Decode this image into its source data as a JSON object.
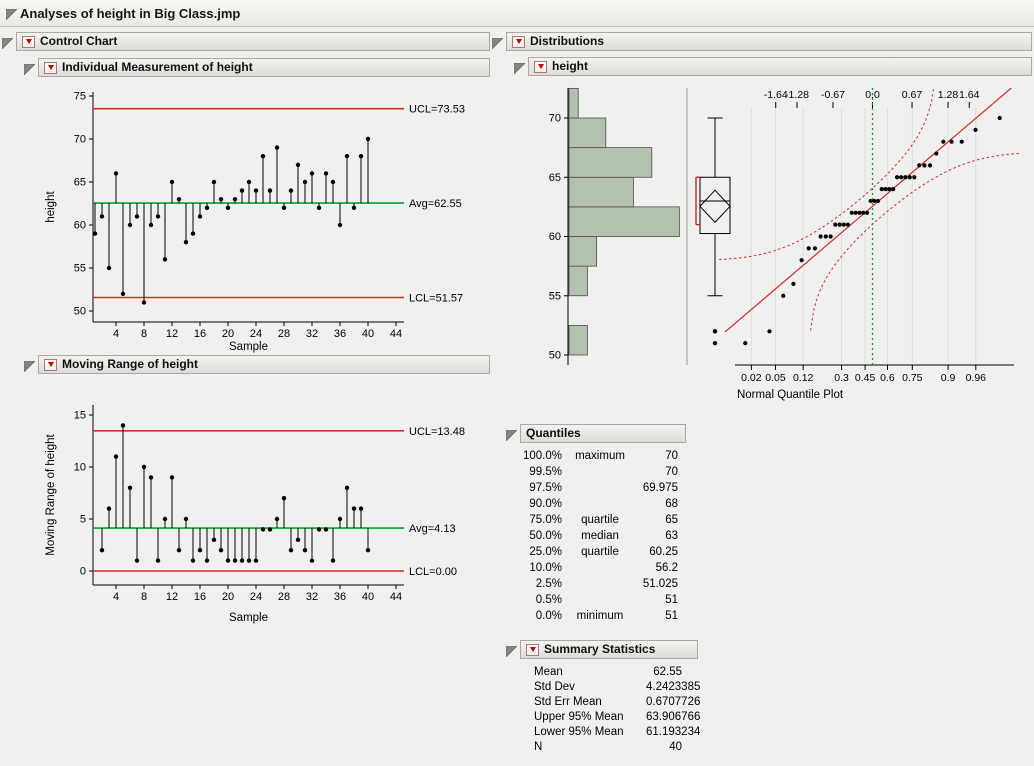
{
  "window_title": "Analyses of height in Big Class.jmp",
  "colors": {
    "limit_red": "#d42a2a",
    "center_green": "#00a42c",
    "hist_fill": "#b3c2af",
    "hist_stroke": "#4d4d4d",
    "bracket_red": "#cc2222",
    "grid_gray": "#dcdcda"
  },
  "sections": {
    "control_chart": {
      "title": "Control Chart"
    },
    "individual": {
      "title": "Individual Measurement of height"
    },
    "moving_range": {
      "title": "Moving Range of height"
    },
    "distributions": {
      "title": "Distributions"
    },
    "height_dist": {
      "title": "height"
    },
    "quantiles": {
      "title": "Quantiles"
    },
    "summary": {
      "title": "Summary Statistics"
    }
  },
  "chart_data": [
    {
      "id": "individual-measurement",
      "type": "line",
      "subtype": "individuals-control-chart",
      "title": "Individual Measurement of height",
      "xlabel": "Sample",
      "ylabel": "height",
      "x_start": 1,
      "values": [
        59,
        61,
        55,
        66,
        52,
        60,
        61,
        51,
        60,
        61,
        56,
        65,
        63,
        58,
        59,
        61,
        62,
        65,
        63,
        62,
        63,
        64,
        65,
        64,
        68,
        64,
        69,
        62,
        64,
        67,
        65,
        66,
        62,
        66,
        65,
        60,
        68,
        62,
        68,
        70
      ],
      "center": 62.55,
      "ucl": 73.53,
      "lcl": 51.57,
      "limit_labels": {
        "ucl": "UCL=73.53",
        "avg": "Avg=62.55",
        "lcl": "LCL=51.57"
      },
      "ylim": [
        50,
        75
      ],
      "yticks": [
        50,
        55,
        60,
        65,
        70,
        75
      ],
      "xticks": [
        4,
        8,
        12,
        16,
        20,
        24,
        28,
        32,
        36,
        40,
        44
      ]
    },
    {
      "id": "moving-range",
      "type": "line",
      "subtype": "moving-range-control-chart",
      "title": "Moving Range of height",
      "xlabel": "Sample",
      "ylabel": "Moving Range of height",
      "x_start": 2,
      "values": [
        2,
        6,
        11,
        14,
        8,
        1,
        10,
        9,
        1,
        5,
        9,
        2,
        5,
        1,
        2,
        1,
        3,
        2,
        1,
        1,
        1,
        1,
        1,
        4,
        4,
        5,
        7,
        2,
        3,
        2,
        1,
        4,
        4,
        1,
        5,
        8,
        6,
        6,
        2
      ],
      "center": 4.13,
      "ucl": 13.48,
      "lcl": 0,
      "limit_labels": {
        "ucl": "UCL=13.48",
        "avg": "Avg=4.13",
        "lcl": "LCL=0.00"
      },
      "ylim": [
        0,
        15
      ],
      "yticks": [
        0,
        5,
        10,
        15
      ],
      "xticks": [
        4,
        8,
        12,
        16,
        20,
        24,
        28,
        32,
        36,
        40,
        44
      ]
    },
    {
      "id": "height-distribution",
      "type": "histogram",
      "title": "height",
      "values": [
        59,
        61,
        55,
        66,
        52,
        60,
        61,
        51,
        60,
        61,
        56,
        65,
        63,
        58,
        59,
        61,
        62,
        65,
        63,
        62,
        63,
        64,
        65,
        64,
        68,
        64,
        69,
        62,
        64,
        67,
        65,
        66,
        62,
        66,
        65,
        60,
        68,
        62,
        68,
        70
      ],
      "yticks": [
        50,
        55,
        60,
        65,
        70
      ],
      "histogram": {
        "bin_start": 50,
        "bin_width": 2.5,
        "counts": [
          2,
          0,
          2,
          3,
          12,
          7,
          9,
          4,
          1
        ]
      },
      "boxplot": {
        "q1": 60.25,
        "median": 63,
        "q3": 65,
        "whisker_low": 55,
        "whisker_high": 70,
        "outliers": [
          51,
          52
        ],
        "mean": 62.55,
        "mean_ci_low": 61.193234,
        "mean_ci_high": 63.906766,
        "shortest_half": [
          61,
          65
        ]
      },
      "qq": {
        "caption": "Normal Quantile Plot",
        "top_ticks": [
          -1.64,
          -1.28,
          -0.67,
          0.0,
          0.67,
          1.28,
          1.64
        ],
        "top_tick_labels": [
          "-1.64",
          "-1.28",
          "-0.67",
          "0.0",
          "0.67",
          "1.28",
          "1.64"
        ],
        "prob_ticks": [
          "0.02",
          "0.05",
          "0.12",
          "0.3",
          "0.45",
          "0.6",
          "0.75",
          "0.9",
          "0.96"
        ],
        "mean": 62.55,
        "sd": 4.2423385,
        "n": 40
      }
    }
  ],
  "quantiles_table": {
    "rows": [
      {
        "pct": "100.0%",
        "label": "maximum",
        "value": "70"
      },
      {
        "pct": "99.5%",
        "label": "",
        "value": "70"
      },
      {
        "pct": "97.5%",
        "label": "",
        "value": "69.975"
      },
      {
        "pct": "90.0%",
        "label": "",
        "value": "68"
      },
      {
        "pct": "75.0%",
        "label": "quartile",
        "value": "65"
      },
      {
        "pct": "50.0%",
        "label": "median",
        "value": "63"
      },
      {
        "pct": "25.0%",
        "label": "quartile",
        "value": "60.25"
      },
      {
        "pct": "10.0%",
        "label": "",
        "value": "56.2"
      },
      {
        "pct": "2.5%",
        "label": "",
        "value": "51.025"
      },
      {
        "pct": "0.5%",
        "label": "",
        "value": "51"
      },
      {
        "pct": "0.0%",
        "label": "minimum",
        "value": "51"
      }
    ]
  },
  "summary_table": {
    "rows": [
      {
        "label": "Mean",
        "value": "62.55"
      },
      {
        "label": "Std Dev",
        "value": "4.2423385"
      },
      {
        "label": "Std Err Mean",
        "value": "0.6707726"
      },
      {
        "label": "Upper 95% Mean",
        "value": "63.906766"
      },
      {
        "label": "Lower 95% Mean",
        "value": "61.193234"
      },
      {
        "label": "N",
        "value": "40"
      }
    ]
  }
}
